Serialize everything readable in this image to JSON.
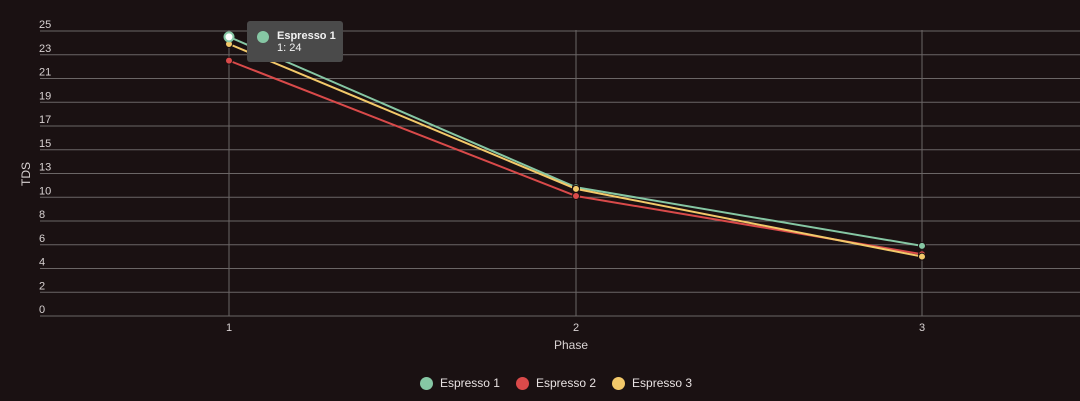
{
  "chart_data": {
    "type": "line",
    "x": [
      1,
      2,
      3
    ],
    "categories": [
      "1",
      "2",
      "3"
    ],
    "series": [
      {
        "name": "Espresso 1",
        "values": [
          24,
          10.5,
          5.4
        ],
        "color": "#86c7a4"
      },
      {
        "name": "Espresso 2",
        "values": [
          22,
          9.6,
          4.7
        ],
        "color": "#d94a4a"
      },
      {
        "name": "Espresso 3",
        "values": [
          23.4,
          10.3,
          4.5
        ],
        "color": "#f3c96a"
      }
    ],
    "xlabel": "Phase",
    "ylabel": "TDS",
    "ylim": [
      0,
      25
    ],
    "yticks": [
      "0",
      "2",
      "4",
      "6",
      "8",
      "10",
      "13",
      "15",
      "17",
      "19",
      "21",
      "23",
      "25"
    ],
    "xticks": [
      "1",
      "2",
      "3"
    ],
    "grid": true,
    "legend_position": "bottom"
  },
  "tooltip": {
    "title": "Espresso 1",
    "value": "1: 24",
    "color": "#86c7a4"
  },
  "colors": {
    "background": "#1a1112",
    "grid": "#6b6666",
    "text": "#d9d3d3"
  }
}
